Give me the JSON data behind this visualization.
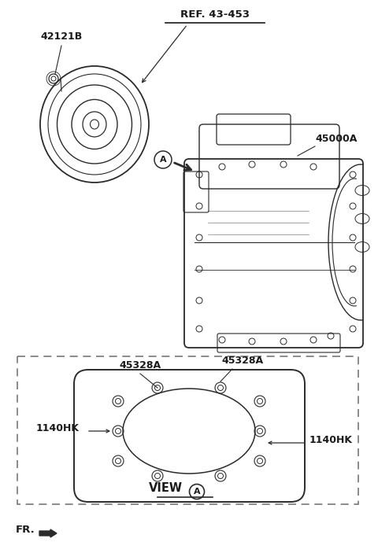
{
  "bg_color": "#ffffff",
  "label_42121B": "42121B",
  "label_ref": "REF. 43-453",
  "label_45000A": "45000A",
  "label_45328A_1": "45328A",
  "label_45328A_2": "45328A",
  "label_1140HK_1": "1140HK",
  "label_1140HK_2": "1140HK",
  "label_viewA": "VIEW",
  "label_A": "A",
  "label_FR": "FR.",
  "text_color": "#1a1a1a",
  "line_color": "#2a2a2a",
  "dashed_box_color": "#777777",
  "figsize": [
    4.8,
    7.03
  ],
  "dpi": 100
}
